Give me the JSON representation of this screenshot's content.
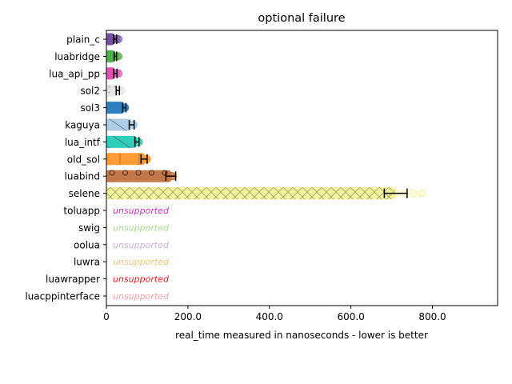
{
  "chart_data": {
    "type": "bar",
    "orientation": "horizontal",
    "title": "optional failure",
    "xlabel": "real_time measured in nanoseconds - lower is better",
    "ylabel": "",
    "xlim": [
      0,
      960
    ],
    "xticks": [
      0,
      200,
      400,
      600,
      800
    ],
    "xtick_labels": [
      "0",
      "200.0",
      "400.0",
      "600.0",
      "800.0"
    ],
    "grid": false,
    "categories": [
      "plain_c",
      "luabridge",
      "lua_api_pp",
      "sol2",
      "sol3",
      "kaguya",
      "lua_intf",
      "old_sol",
      "luabind",
      "selene",
      "toluapp",
      "swig",
      "oolua",
      "luwra",
      "luawrapper",
      "luacppinterface"
    ],
    "values": [
      21,
      22,
      22,
      28,
      44,
      62,
      75,
      95,
      160,
      710,
      null,
      null,
      null,
      null,
      null,
      null
    ],
    "errors": [
      [
        18,
        25
      ],
      [
        19,
        25
      ],
      [
        18,
        26
      ],
      [
        24,
        32
      ],
      [
        40,
        48
      ],
      [
        56,
        68
      ],
      [
        70,
        80
      ],
      [
        85,
        100
      ],
      [
        146,
        170
      ],
      [
        682,
        738
      ],
      null,
      null,
      null,
      null,
      null,
      null
    ],
    "point_max": [
      30,
      30,
      30,
      38,
      46,
      68,
      80,
      100,
      163,
      775,
      null,
      null,
      null,
      null,
      null,
      null
    ],
    "colors": [
      "#7550a5",
      "#4fb04a",
      "#e252b5",
      "#e6e6e6",
      "#2e7fbf",
      "#aecde6",
      "#2ecfb9",
      "#ff9c37",
      "#c3784a",
      "#f3f39a",
      "#c737c7",
      "#a7d98a",
      "#c6b3da",
      "#f8c37a",
      "#dd2020",
      "#f3a1a6"
    ],
    "hatches": [
      "none",
      "none",
      "none",
      "dots",
      "none",
      "diag",
      "diag",
      "vert",
      "circles",
      "cross",
      "none",
      "none",
      "none",
      "none",
      "none",
      "none"
    ],
    "unsupported_label": "unsupported"
  }
}
